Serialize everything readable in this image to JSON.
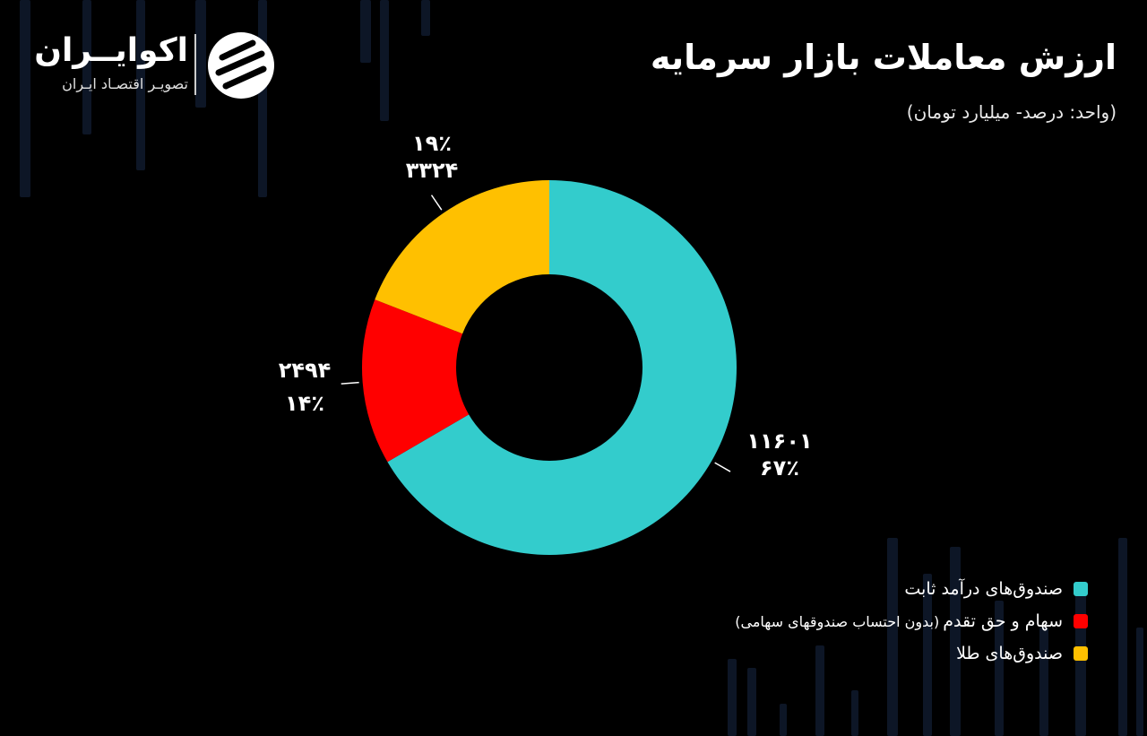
{
  "header": {
    "title": "ارزش معاملات بازار سرمایه",
    "subtitle": "(واحد: درصد- میلیارد تومان)"
  },
  "brand": {
    "name": "اکوایــران",
    "tagline": "تصویـر اقتصـاد ایـران"
  },
  "chart_data": {
    "type": "pie",
    "donut": true,
    "categories": [
      "صندوق‌های درآمد ثابت",
      "سهام و حق تقدم",
      "صندوق‌های طلا"
    ],
    "values": [
      11601,
      2494,
      3324
    ],
    "percents": [
      67,
      14,
      19
    ],
    "value_labels": [
      "۱۱۶۰۱",
      "۲۴۹۴",
      "۳۳۲۴"
    ],
    "percent_labels": [
      "۶۷٪",
      "۱۴٪",
      "۱۹٪"
    ],
    "colors": [
      "#33CCCC",
      "#FF0000",
      "#FFC000"
    ],
    "legend_placement": "bottom-right"
  },
  "legend": {
    "items": [
      {
        "label": "صندوق‌های درآمد ثابت",
        "note": "",
        "color": "#33CCCC"
      },
      {
        "label": "سهام و حق تقدم",
        "note": "(بدون احتساب صندوقهای سهامی)",
        "color": "#FF0000"
      },
      {
        "label": "صندوق‌های طلا",
        "note": "",
        "color": "#FFC000"
      }
    ]
  }
}
